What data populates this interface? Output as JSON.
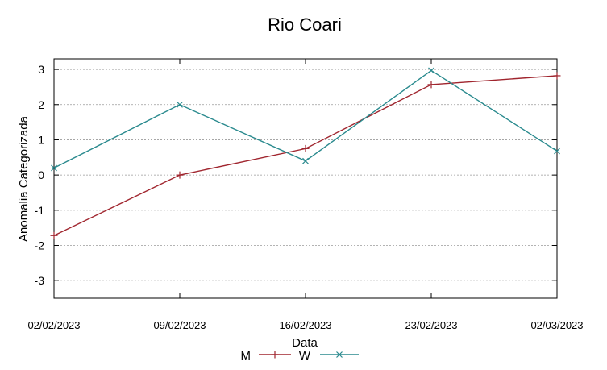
{
  "chart_data": {
    "type": "line",
    "title": "Rio Coari",
    "xlabel": "Data",
    "ylabel": "Anomalia Categorizada",
    "x": [
      "02/02/2023",
      "09/02/2023",
      "16/02/2023",
      "23/02/2023",
      "02/03/2023"
    ],
    "ylim": [
      -3.5,
      3.3
    ],
    "yticks": [
      "-3",
      "-2",
      "-1",
      "0",
      "1",
      "2",
      "3"
    ],
    "grid": true,
    "legend_position": "bottom-center",
    "series": [
      {
        "name": "M",
        "values": [
          -1.72,
          0.0,
          0.75,
          2.57,
          2.82
        ],
        "color": "#a0252e",
        "marker": "+"
      },
      {
        "name": "W",
        "values": [
          0.2,
          2.0,
          0.4,
          2.97,
          0.68
        ],
        "color": "#2a8a8e",
        "marker": "x"
      }
    ]
  }
}
